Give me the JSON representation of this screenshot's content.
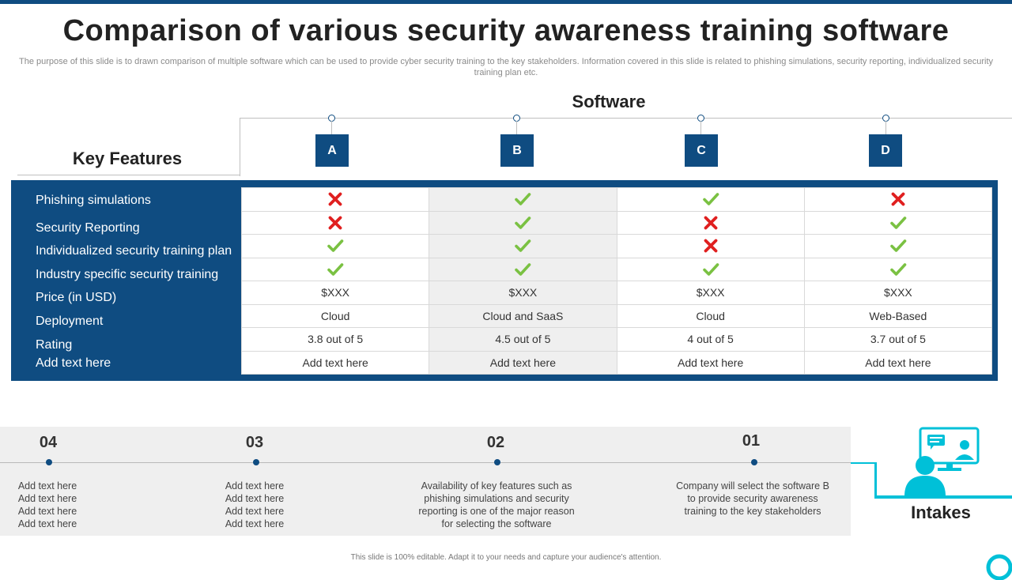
{
  "slide": {
    "title": "Comparison of various security awareness training software",
    "subtitle": "The purpose of this slide is to drawn comparison of multiple software which can be used to provide cyber security training to the key stakeholders. Information covered in this slide is related to phishing simulations, security reporting, individualized security training plan etc.",
    "footer": "This slide is 100% editable. Adapt it to your needs and capture your audience's attention."
  },
  "colors": {
    "primary": "#0f4c81",
    "accent": "#00c0d8",
    "check": "#7ac142",
    "cross": "#e02020",
    "shade": "#efefef"
  },
  "table": {
    "software_heading": "Software",
    "features_heading": "Key Features",
    "columns": [
      "A",
      "B",
      "C",
      "D"
    ],
    "features": [
      "Phishing simulations",
      "Security Reporting",
      "Individualized  security training plan",
      "Industry  specific security training",
      "Price (in USD)",
      "Deployment",
      "Rating",
      "Add text here"
    ],
    "marks": [
      [
        "cross",
        "check",
        "check",
        "cross"
      ],
      [
        "cross",
        "check",
        "cross",
        "check"
      ],
      [
        "check",
        "check",
        "cross",
        "check"
      ],
      [
        "check",
        "check",
        "check",
        "check"
      ]
    ],
    "price": [
      "$XXX",
      "$XXX",
      "$XXX",
      "$XXX"
    ],
    "deployment": [
      "Cloud",
      "Cloud and SaaS",
      "Cloud",
      "Web-Based"
    ],
    "rating": [
      "3.8 out of 5",
      "4.5 out of 5",
      "4 out of 5",
      "3.7 out of 5"
    ],
    "extra": [
      "Add text here",
      "Add text here",
      "Add text here",
      "Add text here"
    ]
  },
  "timeline": {
    "steps": [
      {
        "num": "04",
        "lines": [
          "Add text here",
          "Add text here",
          "Add text here",
          "Add text here"
        ]
      },
      {
        "num": "03",
        "lines": [
          "Add text here",
          "Add text here",
          "Add text here",
          "Add text here"
        ]
      },
      {
        "num": "02",
        "lines": [
          "Availability of key features  such as",
          "phishing simulations and security",
          "reporting is one of the major reason",
          "for selecting the software"
        ]
      },
      {
        "num": "01",
        "lines": [
          "Company will select the software B",
          "to provide  security awareness",
          "training to the key stakeholders"
        ]
      }
    ],
    "end_label": "Intakes",
    "end_icon": "person-at-monitor-icon"
  }
}
